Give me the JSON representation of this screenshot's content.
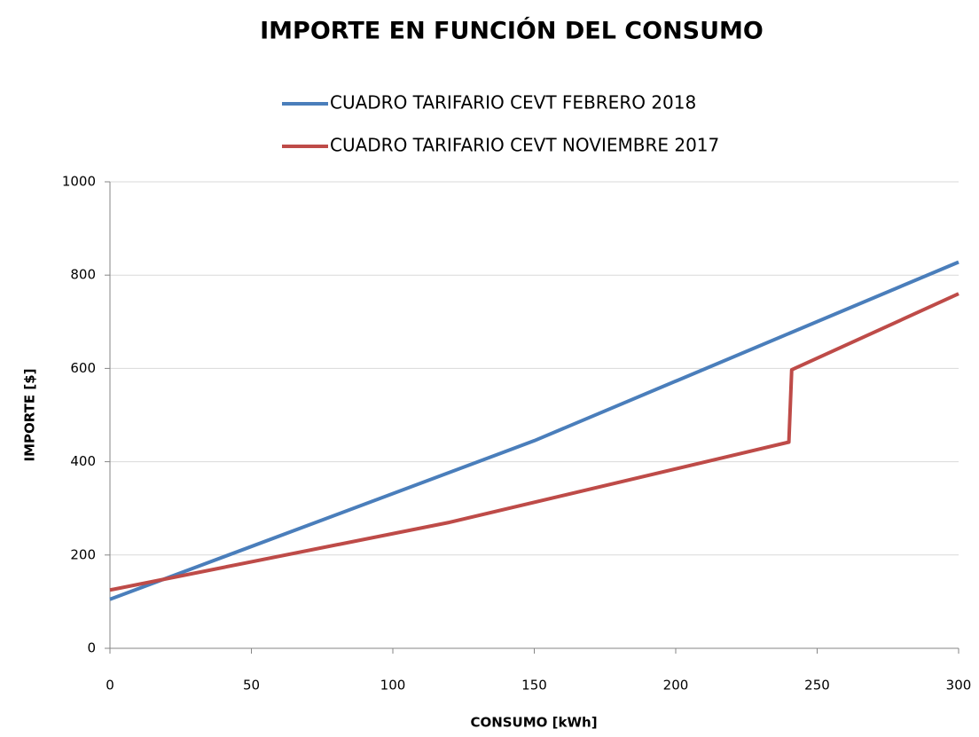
{
  "chart_data": {
    "type": "line",
    "title": "IMPORTE EN FUNCIÓN DEL CONSUMO",
    "x_label": "CONSUMO [kWh]",
    "y_label": "IMPORTE [$]",
    "series": [
      {
        "name": "CUADRO TARIFARIO CEVT FEBRERO 2018",
        "color": "#4a7ebb",
        "x": [
          0,
          150,
          300
        ],
        "values": [
          105,
          445,
          828
        ]
      },
      {
        "name": "CUADRO TARIFARIO CEVT NOVIEMBRE 2017",
        "color": "#be4b48",
        "x": [
          0,
          120,
          240,
          241,
          300
        ],
        "values": [
          125,
          270,
          442,
          597,
          760
        ]
      }
    ],
    "xlim": [
      0,
      300
    ],
    "xticks": [
      0,
      50,
      100,
      150,
      200,
      250,
      300
    ],
    "ylim": [
      0,
      1000
    ],
    "yticks": [
      0,
      200,
      400,
      600,
      800,
      1000
    ],
    "grid": true,
    "legend": "top"
  }
}
